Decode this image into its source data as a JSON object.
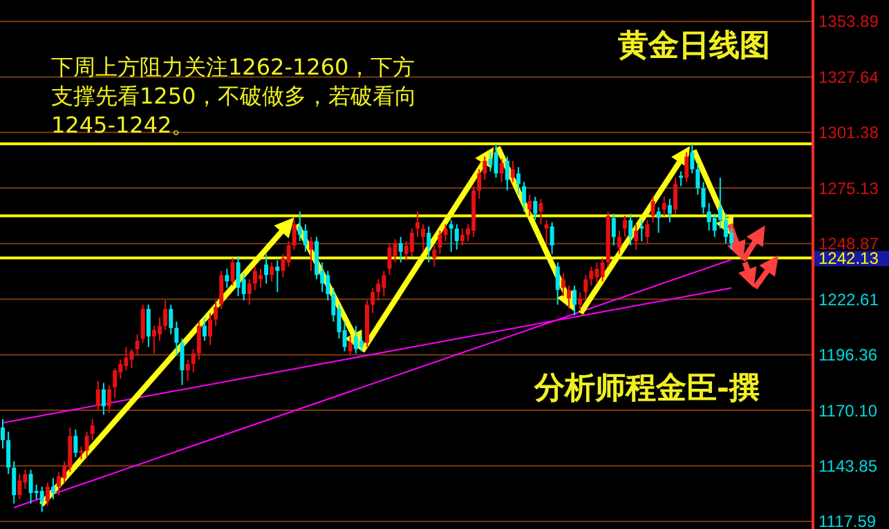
{
  "chart_data": {
    "type": "candlestick",
    "title": "黄金日线图",
    "annotations": [
      "下周上方阻力关注1262-1260，下方",
      "支撑先看1250，不破做多，若破看向",
      "1245-1242。",
      "分析师程金臣-撰"
    ],
    "categories": [
      null,
      null,
      null,
      null,
      null,
      null,
      null,
      null,
      null,
      null,
      null,
      null,
      null,
      null,
      null,
      null,
      null,
      null,
      null,
      null,
      null,
      null,
      null,
      null,
      null,
      null,
      null,
      null,
      null,
      null,
      null,
      null,
      null,
      null,
      null,
      null,
      null,
      null,
      null,
      null,
      null,
      null,
      null,
      null,
      null,
      null,
      null,
      null,
      null,
      null,
      null,
      null,
      null,
      null,
      null,
      null,
      null,
      null,
      null,
      null,
      null,
      null,
      null,
      null,
      null,
      null,
      null,
      null,
      null,
      null,
      null,
      null,
      null,
      null,
      null,
      null,
      null,
      null,
      null,
      null,
      null,
      null,
      null,
      null,
      null,
      null,
      null,
      null,
      null,
      null,
      null,
      null,
      null,
      null,
      null,
      null,
      null,
      null,
      null,
      null,
      null,
      null,
      null,
      null,
      null,
      null,
      null,
      null,
      null,
      null,
      null,
      null,
      null,
      null,
      null,
      null,
      null,
      null,
      null,
      null,
      null,
      null,
      null,
      null,
      null,
      null,
      null,
      null,
      null,
      null,
      null
    ],
    "series": [
      {
        "type": "line",
        "color": "#ff00ff",
        "values": [
          1164.2,
          null,
          null,
          null,
          null,
          null,
          null,
          null,
          null,
          null,
          null,
          null,
          null,
          null,
          null,
          null,
          null,
          null,
          null,
          null,
          null,
          null,
          null,
          null,
          null,
          null,
          null,
          null,
          null,
          null,
          null,
          null,
          null,
          null,
          null,
          null,
          null,
          null,
          null,
          null,
          null,
          null,
          null,
          null,
          null,
          null,
          null,
          null,
          null,
          null,
          null,
          null,
          null,
          null,
          null,
          null,
          null,
          null,
          null,
          null,
          null,
          null,
          null,
          null,
          null,
          null,
          null,
          null,
          null,
          null,
          null,
          null,
          null,
          null,
          null,
          null,
          null,
          null,
          null,
          null,
          null,
          null,
          null,
          null,
          null,
          null,
          null,
          null,
          null,
          null,
          null,
          null,
          null,
          null,
          null,
          null,
          null,
          null,
          null,
          null,
          null,
          null,
          null,
          null,
          null,
          null,
          null,
          null,
          null,
          null,
          null,
          null,
          null,
          null,
          null,
          null,
          null,
          null,
          null,
          null,
          null,
          null,
          null,
          null,
          null,
          null,
          null,
          null,
          null,
          null,
          1227.9
        ]
      },
      {
        "type": "line",
        "color": "#ff00ff",
        "values": [
          null,
          null,
          1124.1,
          null,
          null,
          null,
          null,
          null,
          null,
          null,
          null,
          null,
          null,
          null,
          null,
          null,
          null,
          null,
          null,
          null,
          null,
          null,
          null,
          null,
          null,
          null,
          null,
          null,
          null,
          null,
          null,
          null,
          null,
          null,
          null,
          null,
          null,
          null,
          null,
          null,
          null,
          null,
          null,
          null,
          null,
          null,
          null,
          null,
          null,
          null,
          null,
          null,
          null,
          null,
          null,
          null,
          null,
          null,
          null,
          null,
          null,
          null,
          null,
          null,
          null,
          null,
          null,
          null,
          null,
          null,
          null,
          null,
          null,
          null,
          null,
          null,
          null,
          null,
          null,
          null,
          null,
          null,
          null,
          null,
          null,
          null,
          null,
          null,
          null,
          null,
          null,
          null,
          null,
          null,
          null,
          null,
          null,
          null,
          null,
          null,
          null,
          null,
          null,
          null,
          null,
          null,
          null,
          null,
          null,
          null,
          null,
          null,
          null,
          null,
          null,
          null,
          null,
          null,
          null,
          null,
          null,
          null,
          null,
          null,
          null,
          null,
          null,
          null,
          null,
          null,
          1241.3
        ]
      }
    ],
    "ohlc": [
      [
        1162,
        1166,
        1152,
        1156
      ],
      [
        1156,
        1160,
        1140,
        1143
      ],
      [
        1143,
        1146,
        1126,
        1130
      ],
      [
        1130,
        1140,
        1128,
        1137
      ],
      [
        1136,
        1142,
        1133,
        1140
      ],
      [
        1140,
        1142,
        1126,
        1131
      ],
      [
        1132,
        1135,
        1128,
        1131
      ],
      [
        1132,
        1134,
        1122,
        1127
      ],
      [
        1127,
        1136,
        1125,
        1134
      ],
      [
        1134,
        1138,
        1128,
        1131
      ],
      [
        1134,
        1141,
        1130,
        1139
      ],
      [
        1138,
        1146,
        1136,
        1144
      ],
      [
        1143,
        1162,
        1141,
        1158
      ],
      [
        1158,
        1161,
        1148,
        1150
      ],
      [
        1150,
        1153,
        1147,
        1151
      ],
      [
        1151,
        1160,
        1148,
        1158
      ],
      [
        1159,
        1166,
        1156,
        1163
      ],
      [
        1172,
        1184,
        1170,
        1180
      ],
      [
        1180,
        1183,
        1168,
        1172
      ],
      [
        1172,
        1182,
        1169,
        1180
      ],
      [
        1181,
        1190,
        1176,
        1189
      ],
      [
        1188,
        1194,
        1185,
        1192
      ],
      [
        1191,
        1200,
        1189,
        1195
      ],
      [
        1194,
        1199,
        1190,
        1198
      ],
      [
        1199,
        1206,
        1196,
        1203
      ],
      [
        1204,
        1220,
        1202,
        1218
      ],
      [
        1218,
        1220,
        1200,
        1205
      ],
      [
        1205,
        1210,
        1197,
        1208
      ],
      [
        1206,
        1214,
        1203,
        1210
      ],
      [
        1210,
        1222,
        1208,
        1218
      ],
      [
        1218,
        1220,
        1206,
        1209
      ],
      [
        1209,
        1212,
        1196,
        1202
      ],
      [
        1202,
        1204,
        1182,
        1189
      ],
      [
        1189,
        1194,
        1184,
        1192
      ],
      [
        1192,
        1199,
        1188,
        1197
      ],
      [
        1197,
        1212,
        1194,
        1210
      ],
      [
        1210,
        1214,
        1203,
        1205
      ],
      [
        1205,
        1216,
        1201,
        1213
      ],
      [
        1213,
        1222,
        1210,
        1219
      ],
      [
        1220,
        1236,
        1218,
        1234
      ],
      [
        1234,
        1237,
        1228,
        1231
      ],
      [
        1231,
        1242,
        1229,
        1240
      ],
      [
        1240,
        1243,
        1224,
        1228
      ],
      [
        1232,
        1235,
        1222,
        1225
      ],
      [
        1225,
        1232,
        1220,
        1230
      ],
      [
        1230,
        1238,
        1227,
        1236
      ],
      [
        1232,
        1237,
        1228,
        1234
      ],
      [
        1239,
        1244,
        1230,
        1234
      ],
      [
        1234,
        1240,
        1231,
        1238
      ],
      [
        1238,
        1241,
        1226,
        1236
      ],
      [
        1236,
        1244,
        1233,
        1242
      ],
      [
        1240,
        1250,
        1238,
        1248
      ],
      [
        1248,
        1260,
        1246,
        1258
      ],
      [
        1257,
        1264,
        1250,
        1253
      ],
      [
        1255,
        1258,
        1245,
        1248
      ],
      [
        1246,
        1252,
        1236,
        1250
      ],
      [
        1250,
        1252,
        1232,
        1234
      ],
      [
        1236,
        1240,
        1226,
        1230
      ],
      [
        1234,
        1236,
        1222,
        1225
      ],
      [
        1225,
        1228,
        1212,
        1215
      ],
      [
        1218,
        1220,
        1204,
        1207
      ],
      [
        1208,
        1212,
        1198,
        1200
      ],
      [
        1198,
        1205,
        1196,
        1202
      ],
      [
        1205,
        1210,
        1197,
        1199
      ],
      [
        1203,
        1206,
        1198,
        1200
      ],
      [
        1202,
        1222,
        1200,
        1220
      ],
      [
        1220,
        1228,
        1216,
        1226
      ],
      [
        1226,
        1232,
        1222,
        1230
      ],
      [
        1228,
        1236,
        1224,
        1234
      ],
      [
        1237,
        1249,
        1234,
        1247
      ],
      [
        1243,
        1251,
        1240,
        1249
      ],
      [
        1249,
        1252,
        1240,
        1245
      ],
      [
        1244,
        1250,
        1241,
        1248
      ],
      [
        1245,
        1256,
        1243,
        1254
      ],
      [
        1256,
        1264,
        1252,
        1259
      ],
      [
        1252,
        1258,
        1245,
        1256
      ],
      [
        1254,
        1257,
        1240,
        1247
      ],
      [
        1242,
        1248,
        1238,
        1246
      ],
      [
        1247,
        1255,
        1244,
        1253
      ],
      [
        1253,
        1258,
        1250,
        1256
      ],
      [
        1258,
        1260,
        1245,
        1256
      ],
      [
        1256,
        1258,
        1246,
        1250
      ],
      [
        1250,
        1256,
        1248,
        1253
      ],
      [
        1253,
        1258,
        1250,
        1256
      ],
      [
        1255,
        1276,
        1252,
        1274
      ],
      [
        1274,
        1284,
        1270,
        1282
      ],
      [
        1282,
        1290,
        1279,
        1288
      ],
      [
        1289,
        1292,
        1283,
        1286
      ],
      [
        1292,
        1296,
        1280,
        1282
      ],
      [
        1282,
        1289,
        1278,
        1287
      ],
      [
        1288,
        1290,
        1274,
        1279
      ],
      [
        1280,
        1288,
        1278,
        1284
      ],
      [
        1282,
        1285,
        1272,
        1277
      ],
      [
        1276,
        1278,
        1264,
        1268
      ],
      [
        1265,
        1272,
        1262,
        1269
      ],
      [
        1269,
        1271,
        1260,
        1263
      ],
      [
        1264,
        1270,
        1258,
        1268
      ],
      [
        1256,
        1260,
        1249,
        1258
      ],
      [
        1257,
        1259,
        1244,
        1248
      ],
      [
        1238,
        1240,
        1220,
        1227
      ],
      [
        1228,
        1235,
        1224,
        1232
      ],
      [
        1223,
        1229,
        1218,
        1227
      ],
      [
        1227,
        1229,
        1215,
        1220
      ],
      [
        1220,
        1226,
        1217,
        1223
      ],
      [
        1226,
        1234,
        1222,
        1232
      ],
      [
        1232,
        1238,
        1229,
        1236
      ],
      [
        1233,
        1240,
        1230,
        1237
      ],
      [
        1233,
        1242,
        1231,
        1240
      ],
      [
        1240,
        1264,
        1238,
        1262
      ],
      [
        1261,
        1263,
        1248,
        1252
      ],
      [
        1247,
        1255,
        1244,
        1252
      ],
      [
        1256,
        1262,
        1252,
        1260
      ],
      [
        1260,
        1263,
        1248,
        1252
      ],
      [
        1250,
        1258,
        1246,
        1255
      ],
      [
        1257,
        1260,
        1250,
        1256
      ],
      [
        1252,
        1260,
        1249,
        1258
      ],
      [
        1262,
        1271,
        1259,
        1269
      ],
      [
        1264,
        1266,
        1254,
        1261
      ],
      [
        1265,
        1271,
        1262,
        1268
      ],
      [
        1267,
        1270,
        1259,
        1263
      ],
      [
        1265,
        1280,
        1263,
        1277
      ],
      [
        1281,
        1283,
        1276,
        1280
      ],
      [
        1280,
        1292,
        1278,
        1290
      ],
      [
        1292,
        1296,
        1282,
        1284
      ],
      [
        1284,
        1287,
        1272,
        1275
      ],
      [
        1275,
        1278,
        1263,
        1266
      ],
      [
        1264,
        1268,
        1255,
        1259
      ],
      [
        1261,
        1263,
        1252,
        1255
      ],
      [
        1266,
        1280,
        1256,
        1260
      ],
      [
        1260,
        1263,
        1249,
        1252
      ],
      [
        1254,
        1256,
        1246,
        1249
      ]
    ],
    "colors": [
      "#00e5ee",
      "#00e5ee",
      "#00e5ee",
      "#e81010",
      "#e81010",
      "#00e5ee",
      "#00e5ee",
      "#00e5ee",
      "#e81010",
      "#00e5ee",
      "#e81010",
      "#e81010",
      "#e81010",
      "#00e5ee",
      "#e81010",
      "#e81010",
      "#e81010",
      "#e81010",
      "#00e5ee",
      "#e81010",
      "#e81010",
      "#e81010",
      "#e81010",
      "#e81010",
      "#e81010",
      "#e81010",
      "#00e5ee",
      "#e81010",
      "#e81010",
      "#e81010",
      "#00e5ee",
      "#00e5ee",
      "#00e5ee",
      "#e81010",
      "#e81010",
      "#e81010",
      "#00e5ee",
      "#e81010",
      "#e81010",
      "#e81010",
      "#00e5ee",
      "#e81010",
      "#00e5ee",
      "#00e5ee",
      "#e81010",
      "#e81010",
      "#e81010",
      "#00e5ee",
      "#e81010",
      "#00e5ee",
      "#e81010",
      "#e81010",
      "#e81010",
      "#00e5ee",
      "#00e5ee",
      "#e81010",
      "#00e5ee",
      "#00e5ee",
      "#00e5ee",
      "#00e5ee",
      "#00e5ee",
      "#00e5ee",
      "#e81010",
      "#00e5ee",
      "#00e5ee",
      "#e81010",
      "#e81010",
      "#e81010",
      "#e81010",
      "#e81010",
      "#e81010",
      "#00e5ee",
      "#e81010",
      "#e81010",
      "#e81010",
      "#e81010",
      "#00e5ee",
      "#e81010",
      "#e81010",
      "#e81010",
      "#00e5ee",
      "#00e5ee",
      "#e81010",
      "#e81010",
      "#e81010",
      "#e81010",
      "#e81010",
      "#00e5ee",
      "#00e5ee",
      "#e81010",
      "#00e5ee",
      "#e81010",
      "#00e5ee",
      "#00e5ee",
      "#e81010",
      "#00e5ee",
      "#e81010",
      "#e81010",
      "#00e5ee",
      "#00e5ee",
      "#e81010",
      "#e81010",
      "#00e5ee",
      "#e81010",
      "#e81010",
      "#e81010",
      "#e81010",
      "#e81010",
      "#e81010",
      "#00e5ee",
      "#e81010",
      "#e81010",
      "#00e5ee",
      "#e81010",
      "#00e5ee",
      "#e81010",
      "#e81010",
      "#00e5ee",
      "#e81010",
      "#00e5ee",
      "#e81010",
      "#00e5ee",
      "#e81010",
      "#00e5ee",
      "#00e5ee",
      "#00e5ee",
      "#00e5ee",
      "#00e5ee",
      "#00e5ee",
      "#00e5ee",
      "#00e5ee"
    ],
    "ref_lines": [
      {
        "axis": "y",
        "value": 1296,
        "color": "#ffff00"
      },
      {
        "axis": "y",
        "value": 1262,
        "color": "#ffff00"
      },
      {
        "axis": "y",
        "value": 1242.13,
        "label": "1242.13",
        "color": "#ffff00"
      }
    ],
    "ylim": [
      1114,
      1364
    ],
    "yticks": [
      1353.89,
      1327.64,
      1301.38,
      1275.13,
      1248.87,
      1222.61,
      1196.36,
      {
        "value": 1170.1,
        "label": "1170.10"
      },
      1143.85,
      1117.59
    ],
    "tick_labels": "y",
    "grid": "y",
    "line_style": "solid"
  }
}
